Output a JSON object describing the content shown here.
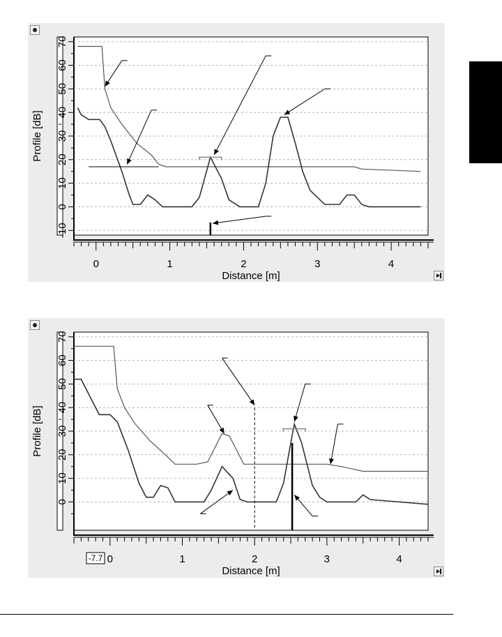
{
  "chart_data": [
    {
      "type": "line",
      "xlabel": "Distance [m]",
      "ylabel": "Profile [dB]",
      "xlim": [
        -0.3,
        4.5
      ],
      "ylim": [
        -12,
        72
      ],
      "x_ticks": [
        "0",
        "1",
        "2",
        "3",
        "4"
      ],
      "y_ticks": [
        "-10",
        "0",
        "10",
        "20",
        "30",
        "40",
        "50",
        "60",
        "70"
      ],
      "grid": "horizontal dashed",
      "series": [
        {
          "role": "threshold-curve",
          "x": [
            -0.25,
            0.08,
            0.12,
            0.2,
            0.35,
            0.55,
            0.75,
            0.85,
            0.95,
            1.5,
            2.5,
            3.5,
            3.6,
            4.4
          ],
          "y": [
            68,
            68,
            50,
            42,
            35,
            27,
            22,
            18,
            17,
            17,
            17,
            17,
            16,
            15
          ]
        },
        {
          "role": "echo-profile",
          "x": [
            -0.25,
            -0.2,
            -0.1,
            0.05,
            0.12,
            0.2,
            0.35,
            0.45,
            0.5,
            0.6,
            0.7,
            0.8,
            0.9,
            1.3,
            1.4,
            1.55,
            1.7,
            1.8,
            1.95,
            2.2,
            2.3,
            2.4,
            2.5,
            2.6,
            2.7,
            2.8,
            2.9,
            3.0,
            3.1,
            3.3,
            3.4,
            3.5,
            3.6,
            3.7,
            4.4
          ],
          "y": [
            42,
            39,
            37,
            37,
            34,
            28,
            15,
            5,
            1,
            1,
            5,
            3,
            0,
            0,
            4,
            21,
            12,
            3,
            0,
            0,
            10,
            30,
            38,
            38,
            27,
            15,
            7,
            4,
            1,
            1,
            5,
            5,
            1,
            0,
            0
          ]
        }
      ],
      "markers": [
        {
          "type": "bracket",
          "x": 1.55,
          "y": 21
        },
        {
          "type": "level-line",
          "x": [
            -0.1,
            0.85
          ],
          "y": 17
        },
        {
          "type": "marker-bar",
          "x": 1.55
        }
      ],
      "annotation_leaders": [
        {
          "from": [
            0.35,
            62
          ],
          "to": [
            0.12,
            51
          ]
        },
        {
          "from": [
            0.75,
            41
          ],
          "to": [
            0.42,
            18
          ]
        },
        {
          "from": [
            2.3,
            64
          ],
          "to": [
            1.6,
            22
          ]
        },
        {
          "from": [
            3.1,
            50
          ],
          "to": [
            2.55,
            39
          ]
        },
        {
          "from": [
            2.3,
            -4
          ],
          "to": [
            1.58,
            -7
          ]
        }
      ]
    },
    {
      "type": "line",
      "xlabel": "Distance [m]",
      "ylabel": "Profile [dB]",
      "xlim": [
        -0.5,
        4.4
      ],
      "ylim": [
        -12,
        72
      ],
      "x_ticks": [
        "0",
        "1",
        "2",
        "3",
        "4"
      ],
      "y_ticks": [
        "0",
        "10",
        "20",
        "30",
        "40",
        "50",
        "60",
        "70"
      ],
      "grid": "horizontal dashed",
      "cursor_readout": "-7.7",
      "series": [
        {
          "role": "threshold-curve",
          "x": [
            -0.5,
            0.05,
            0.1,
            0.2,
            0.35,
            0.55,
            0.8,
            0.9,
            1.2,
            1.35,
            1.55,
            1.65,
            1.75,
            1.85,
            2.5,
            3.0,
            3.2,
            3.5,
            4.4
          ],
          "y": [
            66,
            66,
            48,
            40,
            33,
            26,
            19,
            16,
            16,
            17,
            29,
            28,
            22,
            16,
            16,
            16,
            15,
            13,
            13
          ]
        },
        {
          "role": "echo-profile",
          "x": [
            -0.5,
            -0.4,
            -0.3,
            -0.15,
            0.0,
            0.1,
            0.25,
            0.4,
            0.5,
            0.6,
            0.7,
            0.8,
            0.9,
            1.3,
            1.4,
            1.55,
            1.7,
            1.8,
            1.9,
            2.3,
            2.4,
            2.5,
            2.55,
            2.65,
            2.8,
            2.9,
            3.0,
            3.4,
            3.5,
            3.6,
            4.4
          ],
          "y": [
            52,
            52,
            46,
            37,
            37,
            34,
            22,
            8,
            2,
            2,
            7,
            6,
            0,
            0,
            5,
            15,
            10,
            1,
            0,
            0,
            8,
            25,
            33,
            25,
            7,
            2,
            0,
            0,
            3,
            1,
            -1
          ]
        }
      ],
      "markers": [
        {
          "type": "bracket",
          "x": 2.55,
          "y": 31
        },
        {
          "type": "dashed-line",
          "x": 2.0
        },
        {
          "type": "marker-bar",
          "x": 2.52,
          "y_top": 25
        }
      ],
      "annotation_leaders": [
        {
          "from": [
            1.35,
            41
          ],
          "to": [
            1.58,
            29
          ]
        },
        {
          "from": [
            1.55,
            61
          ],
          "to": [
            2.0,
            41
          ]
        },
        {
          "from": [
            2.7,
            50
          ],
          "to": [
            2.55,
            34
          ]
        },
        {
          "from": [
            3.15,
            33
          ],
          "to": [
            3.05,
            16
          ]
        },
        {
          "from": [
            1.25,
            -5
          ],
          "to": [
            1.7,
            5
          ]
        },
        {
          "from": [
            2.8,
            -6
          ],
          "to": [
            2.55,
            3
          ]
        }
      ]
    }
  ]
}
